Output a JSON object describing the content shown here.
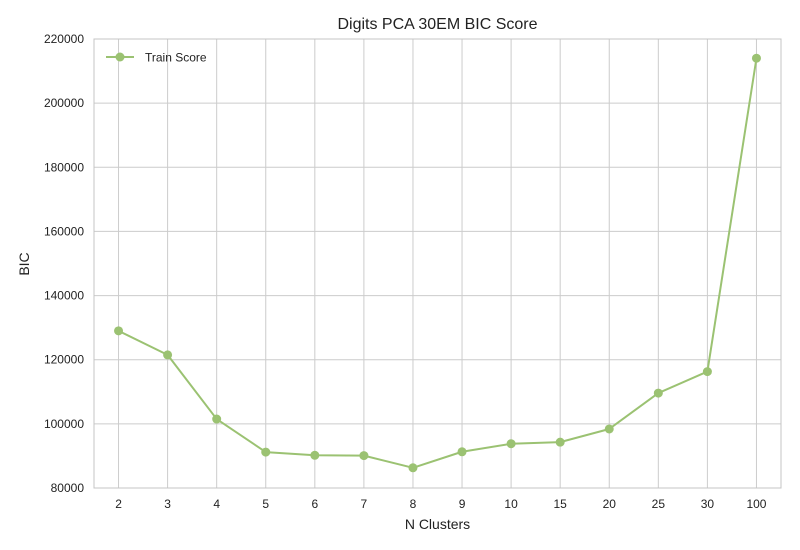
{
  "chart_data": {
    "type": "line",
    "title": "Digits PCA 30EM BIC Score",
    "xlabel": "N Clusters",
    "ylabel": "BIC",
    "categories": [
      "2",
      "3",
      "4",
      "5",
      "6",
      "7",
      "8",
      "9",
      "10",
      "15",
      "20",
      "25",
      "30",
      "100"
    ],
    "series": [
      {
        "name": "Train Score",
        "values": [
          129000,
          121500,
          101500,
          91200,
          90200,
          90100,
          86300,
          91300,
          93800,
          94300,
          98400,
          109600,
          116300,
          214000
        ]
      }
    ],
    "ylim": [
      80000,
      220000
    ],
    "yticks": [
      80000,
      100000,
      120000,
      140000,
      160000,
      180000,
      200000,
      220000
    ],
    "grid": true,
    "legend_position": "top-left",
    "colors": {
      "series": "#9bc272",
      "grid": "#cccccc",
      "spine": "#c4c4c4",
      "text": "#222222"
    }
  }
}
